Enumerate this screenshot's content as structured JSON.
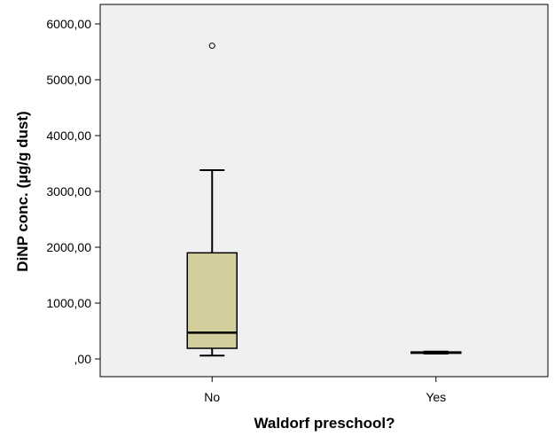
{
  "chart_data": {
    "type": "boxplot",
    "xlabel": "Waldorf preschool?",
    "ylabel": "DiNP conc. (µg/g dust)",
    "ylim": [
      -300,
      6300
    ],
    "y_ticks": [
      0,
      1000,
      2000,
      3000,
      4000,
      5000,
      6000
    ],
    "y_tick_labels": [
      ",00",
      "1000,00",
      "2000,00",
      "3000,00",
      "4000,00",
      "5000,00",
      "6000,00"
    ],
    "categories": [
      "No",
      "Yes"
    ],
    "boxes": [
      {
        "category": "No",
        "whisker_low": 60,
        "q1": 190,
        "median": 470,
        "q3": 1900,
        "whisker_high": 3380,
        "outliers": [
          5610
        ]
      },
      {
        "category": "Yes",
        "whisker_low": 95,
        "q1": 105,
        "median": 115,
        "q3": 125,
        "whisker_high": 130,
        "outliers": []
      }
    ],
    "grid": false,
    "colors": {
      "box_fill": "#d3cf9c",
      "plot_background": "#f0f0f0",
      "axis": "#000000"
    }
  }
}
